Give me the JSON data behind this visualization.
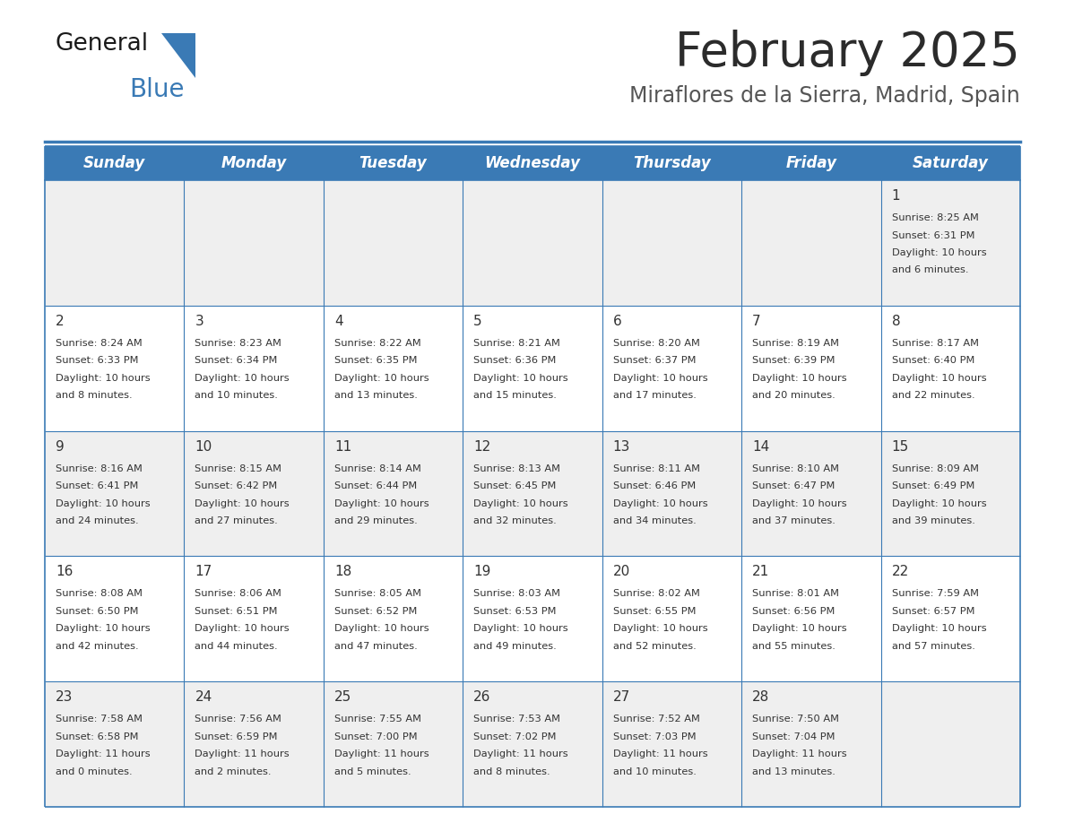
{
  "title": "February 2025",
  "subtitle": "Miraflores de la Sierra, Madrid, Spain",
  "header_color": "#3a7ab5",
  "header_text_color": "#ffffff",
  "cell_bg_odd": "#efefef",
  "cell_bg_even": "#ffffff",
  "border_color": "#3a7ab5",
  "text_color": "#333333",
  "days_of_week": [
    "Sunday",
    "Monday",
    "Tuesday",
    "Wednesday",
    "Thursday",
    "Friday",
    "Saturday"
  ],
  "calendar_data": [
    [
      null,
      null,
      null,
      null,
      null,
      null,
      {
        "day": "1",
        "sunrise": "8:25 AM",
        "sunset": "6:31 PM",
        "daylight_h": "10 hours",
        "daylight_m": "6 minutes."
      }
    ],
    [
      {
        "day": "2",
        "sunrise": "8:24 AM",
        "sunset": "6:33 PM",
        "daylight_h": "10 hours",
        "daylight_m": "8 minutes."
      },
      {
        "day": "3",
        "sunrise": "8:23 AM",
        "sunset": "6:34 PM",
        "daylight_h": "10 hours",
        "daylight_m": "10 minutes."
      },
      {
        "day": "4",
        "sunrise": "8:22 AM",
        "sunset": "6:35 PM",
        "daylight_h": "10 hours",
        "daylight_m": "13 minutes."
      },
      {
        "day": "5",
        "sunrise": "8:21 AM",
        "sunset": "6:36 PM",
        "daylight_h": "10 hours",
        "daylight_m": "15 minutes."
      },
      {
        "day": "6",
        "sunrise": "8:20 AM",
        "sunset": "6:37 PM",
        "daylight_h": "10 hours",
        "daylight_m": "17 minutes."
      },
      {
        "day": "7",
        "sunrise": "8:19 AM",
        "sunset": "6:39 PM",
        "daylight_h": "10 hours",
        "daylight_m": "20 minutes."
      },
      {
        "day": "8",
        "sunrise": "8:17 AM",
        "sunset": "6:40 PM",
        "daylight_h": "10 hours",
        "daylight_m": "22 minutes."
      }
    ],
    [
      {
        "day": "9",
        "sunrise": "8:16 AM",
        "sunset": "6:41 PM",
        "daylight_h": "10 hours",
        "daylight_m": "24 minutes."
      },
      {
        "day": "10",
        "sunrise": "8:15 AM",
        "sunset": "6:42 PM",
        "daylight_h": "10 hours",
        "daylight_m": "27 minutes."
      },
      {
        "day": "11",
        "sunrise": "8:14 AM",
        "sunset": "6:44 PM",
        "daylight_h": "10 hours",
        "daylight_m": "29 minutes."
      },
      {
        "day": "12",
        "sunrise": "8:13 AM",
        "sunset": "6:45 PM",
        "daylight_h": "10 hours",
        "daylight_m": "32 minutes."
      },
      {
        "day": "13",
        "sunrise": "8:11 AM",
        "sunset": "6:46 PM",
        "daylight_h": "10 hours",
        "daylight_m": "34 minutes."
      },
      {
        "day": "14",
        "sunrise": "8:10 AM",
        "sunset": "6:47 PM",
        "daylight_h": "10 hours",
        "daylight_m": "37 minutes."
      },
      {
        "day": "15",
        "sunrise": "8:09 AM",
        "sunset": "6:49 PM",
        "daylight_h": "10 hours",
        "daylight_m": "39 minutes."
      }
    ],
    [
      {
        "day": "16",
        "sunrise": "8:08 AM",
        "sunset": "6:50 PM",
        "daylight_h": "10 hours",
        "daylight_m": "42 minutes."
      },
      {
        "day": "17",
        "sunrise": "8:06 AM",
        "sunset": "6:51 PM",
        "daylight_h": "10 hours",
        "daylight_m": "44 minutes."
      },
      {
        "day": "18",
        "sunrise": "8:05 AM",
        "sunset": "6:52 PM",
        "daylight_h": "10 hours",
        "daylight_m": "47 minutes."
      },
      {
        "day": "19",
        "sunrise": "8:03 AM",
        "sunset": "6:53 PM",
        "daylight_h": "10 hours",
        "daylight_m": "49 minutes."
      },
      {
        "day": "20",
        "sunrise": "8:02 AM",
        "sunset": "6:55 PM",
        "daylight_h": "10 hours",
        "daylight_m": "52 minutes."
      },
      {
        "day": "21",
        "sunrise": "8:01 AM",
        "sunset": "6:56 PM",
        "daylight_h": "10 hours",
        "daylight_m": "55 minutes."
      },
      {
        "day": "22",
        "sunrise": "7:59 AM",
        "sunset": "6:57 PM",
        "daylight_h": "10 hours",
        "daylight_m": "57 minutes."
      }
    ],
    [
      {
        "day": "23",
        "sunrise": "7:58 AM",
        "sunset": "6:58 PM",
        "daylight_h": "11 hours",
        "daylight_m": "0 minutes."
      },
      {
        "day": "24",
        "sunrise": "7:56 AM",
        "sunset": "6:59 PM",
        "daylight_h": "11 hours",
        "daylight_m": "2 minutes."
      },
      {
        "day": "25",
        "sunrise": "7:55 AM",
        "sunset": "7:00 PM",
        "daylight_h": "11 hours",
        "daylight_m": "5 minutes."
      },
      {
        "day": "26",
        "sunrise": "7:53 AM",
        "sunset": "7:02 PM",
        "daylight_h": "11 hours",
        "daylight_m": "8 minutes."
      },
      {
        "day": "27",
        "sunrise": "7:52 AM",
        "sunset": "7:03 PM",
        "daylight_h": "11 hours",
        "daylight_m": "10 minutes."
      },
      {
        "day": "28",
        "sunrise": "7:50 AM",
        "sunset": "7:04 PM",
        "daylight_h": "11 hours",
        "daylight_m": "13 minutes."
      },
      null
    ]
  ],
  "title_fontsize": 38,
  "subtitle_fontsize": 17,
  "header_fontsize": 12,
  "day_num_fontsize": 11,
  "cell_text_fontsize": 8.2,
  "logo_general_size": 19,
  "logo_blue_size": 20
}
